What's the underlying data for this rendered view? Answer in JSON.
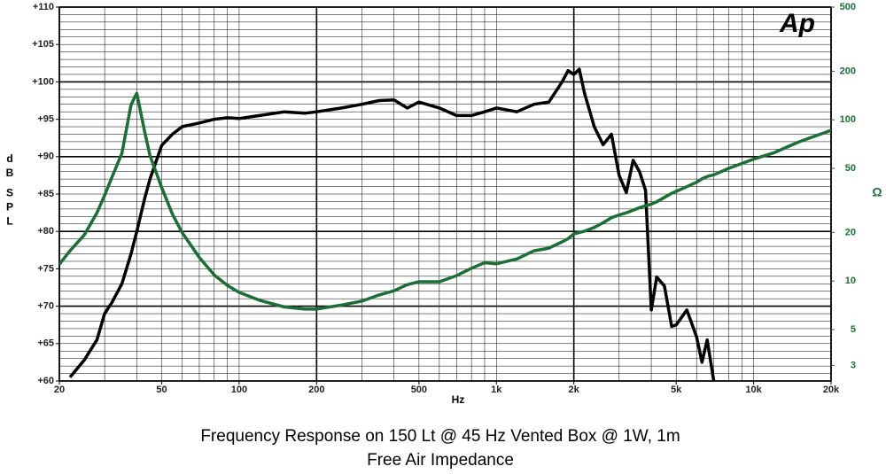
{
  "chart_data": {
    "type": "line",
    "title": "Frequency Response on 150 Lt @ 45 Hz Vented Box @ 1W, 1m",
    "subtitle": "Free Air Impedance",
    "logo": "Ap",
    "xlabel": "Hz",
    "ylabel": "dB SPL",
    "y2label": "Ω",
    "xscale": "log",
    "y2scale": "log",
    "grid": true,
    "xlim": [
      20,
      20000
    ],
    "xticks": [
      20,
      50,
      100,
      200,
      500,
      {
        "value": 1000,
        "label": "1k"
      },
      {
        "value": 2000,
        "label": "2k"
      },
      {
        "value": 5000,
        "label": "5k"
      },
      {
        "value": 10000,
        "label": "10k"
      },
      {
        "value": 20000,
        "label": "20k"
      }
    ],
    "ylim": [
      60,
      110
    ],
    "yticks": [
      {
        "value": 60,
        "label": "+60"
      },
      {
        "value": 65,
        "label": "+65"
      },
      {
        "value": 70,
        "label": "+70"
      },
      {
        "value": 75,
        "label": "+75"
      },
      {
        "value": 80,
        "label": "+80"
      },
      {
        "value": 85,
        "label": "+85"
      },
      {
        "value": 90,
        "label": "+90"
      },
      {
        "value": 95,
        "label": "+95"
      },
      {
        "value": 100,
        "label": "+100"
      },
      {
        "value": 105,
        "label": "+105"
      },
      {
        "value": 110,
        "label": "+110"
      }
    ],
    "y2lim": [
      2.4,
      500
    ],
    "y2ticks": [
      3,
      5,
      10,
      20,
      50,
      100,
      200,
      500
    ],
    "x": [
      20,
      22,
      25,
      28,
      30,
      32,
      35,
      38,
      40,
      43,
      45,
      50,
      55,
      60,
      70,
      80,
      90,
      100,
      120,
      150,
      180,
      200,
      250,
      300,
      350,
      400,
      450,
      500,
      600,
      700,
      800,
      900,
      1000,
      1200,
      1400,
      1600,
      1800,
      1900,
      2000,
      2100,
      2200,
      2400,
      2600,
      2800,
      3000,
      3200,
      3400,
      3600,
      3800,
      4000,
      4200,
      4500,
      4800,
      5000,
      5500,
      6000,
      6300,
      6600,
      7000,
      8000,
      10000,
      12000,
      15000,
      18000,
      20000
    ],
    "series": [
      {
        "color": "#000000",
        "values": [
          null,
          60.5,
          62.8,
          65.5,
          69,
          70.5,
          73,
          77,
          80,
          84.5,
          87,
          91.5,
          93,
          94,
          94.5,
          95,
          95.2,
          95.1,
          95.5,
          96,
          95.8,
          96,
          96.5,
          97,
          97.5,
          97.6,
          96.5,
          97.3,
          96.5,
          95.5,
          95.5,
          96,
          96.5,
          96,
          97,
          97.3,
          100,
          101.5,
          101,
          101.7,
          98.5,
          94,
          91.6,
          93,
          87.5,
          85.2,
          89.5,
          88,
          85.5,
          69.5,
          73.9,
          72.7,
          67.3,
          67.5,
          69.5,
          65.9,
          62.5,
          65.5,
          60,
          null,
          null,
          null,
          null,
          null,
          null
        ]
      },
      {
        "color": "#1b6e35",
        "axis": "y2",
        "values": [
          12.7,
          15.4,
          19.3,
          26.5,
          34,
          44,
          62,
          124,
          146,
          83,
          60,
          38,
          26,
          20,
          14,
          10.9,
          9.4,
          8.5,
          7.6,
          6.9,
          6.7,
          6.7,
          7.1,
          7.5,
          8.2,
          8.7,
          9.5,
          9.9,
          9.9,
          10.8,
          12,
          13,
          12.8,
          13.7,
          15.4,
          16,
          17.5,
          18.3,
          19.6,
          20,
          20.4,
          21.5,
          23,
          24.7,
          25.7,
          26.5,
          27.5,
          28.5,
          29.3,
          30,
          31,
          33,
          35,
          36,
          38.5,
          41,
          43,
          44.5,
          45.6,
          50,
          57,
          62.5,
          73,
          81,
          86
        ]
      }
    ]
  }
}
